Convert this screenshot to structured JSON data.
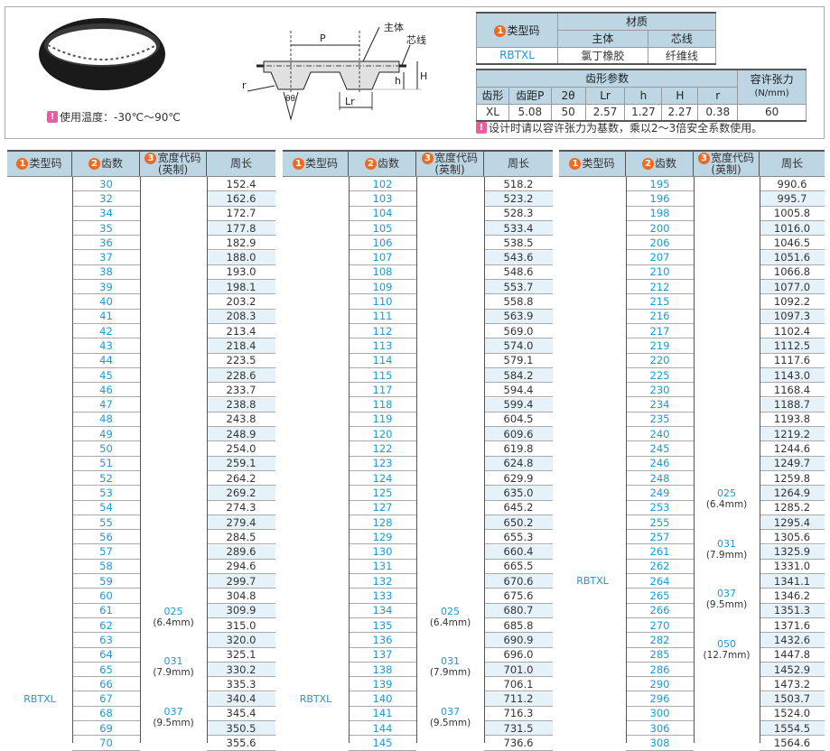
{
  "top": {
    "temperature_note": "使用温度：-30℃～90℃",
    "diagram_labels": {
      "P": "P",
      "body": "主体",
      "core": "芯线",
      "H": "H",
      "h": "h",
      "r": "r",
      "theta": "θθ",
      "Lr": "Lr"
    },
    "material_table": {
      "type_code_num": "1",
      "type_code": "类型码",
      "material": "材质",
      "body": "主体",
      "core": "芯线",
      "row": {
        "type": "RBTXL",
        "body": "氯丁橡胶",
        "core": "纤维线"
      }
    },
    "tooth_table": {
      "group": "齿形参数",
      "tension": "容许张力",
      "tension_unit": "(N/mm)",
      "headers": [
        "齿形",
        "齿距P",
        "2θ",
        "Lr",
        "h",
        "H",
        "r"
      ],
      "values": [
        "XL",
        "5.08",
        "50",
        "2.57",
        "1.27",
        "2.27",
        "0.38"
      ],
      "tension_value": "60"
    },
    "design_note": "设计时请以容许张力为基数，乘以2～3倍安全系数使用。"
  },
  "colors": {
    "header_bg": "#bdd6e4",
    "accent_blue": "#1a9ad6",
    "badge_orange": "#ee6a1f",
    "warn_pink": "#e85fa0",
    "row_shade": "#e6f2f9"
  },
  "columns": {
    "type_num": "1",
    "type": "类型码",
    "teeth_num": "2",
    "teeth": "齿数",
    "width_num": "3",
    "width": "宽度代码",
    "width_sub": "(英制)",
    "length": "周长"
  },
  "tables": [
    {
      "type": "RBTXL",
      "widths": [
        {
          "code": "025",
          "mm": "(6.4mm)"
        },
        {
          "code": "031",
          "mm": "(7.9mm)"
        },
        {
          "code": "037",
          "mm": "(9.5mm)"
        }
      ],
      "rows": [
        [
          "30",
          "152.4"
        ],
        [
          "32",
          "162.6"
        ],
        [
          "34",
          "172.7"
        ],
        [
          "35",
          "177.8"
        ],
        [
          "36",
          "182.9"
        ],
        [
          "37",
          "188.0"
        ],
        [
          "38",
          "193.0"
        ],
        [
          "39",
          "198.1"
        ],
        [
          "40",
          "203.2"
        ],
        [
          "41",
          "208.3"
        ],
        [
          "42",
          "213.4"
        ],
        [
          "43",
          "218.4"
        ],
        [
          "44",
          "223.5"
        ],
        [
          "45",
          "228.6"
        ],
        [
          "46",
          "233.7"
        ],
        [
          "47",
          "238.8"
        ],
        [
          "48",
          "243.8"
        ],
        [
          "49",
          "248.9"
        ],
        [
          "50",
          "254.0"
        ],
        [
          "51",
          "259.1"
        ],
        [
          "52",
          "264.2"
        ],
        [
          "53",
          "269.2"
        ],
        [
          "54",
          "274.3"
        ],
        [
          "55",
          "279.4"
        ],
        [
          "56",
          "284.5"
        ],
        [
          "57",
          "289.6"
        ],
        [
          "58",
          "294.6"
        ],
        [
          "59",
          "299.7"
        ],
        [
          "60",
          "304.8"
        ],
        [
          "61",
          "309.9"
        ],
        [
          "62",
          "315.0"
        ],
        [
          "63",
          "320.0"
        ],
        [
          "64",
          "325.1"
        ],
        [
          "65",
          "330.2"
        ],
        [
          "66",
          "335.3"
        ],
        [
          "67",
          "340.4"
        ],
        [
          "68",
          "345.4"
        ],
        [
          "69",
          "350.5"
        ],
        [
          "70",
          "355.6"
        ]
      ]
    },
    {
      "type": "RBTXL",
      "widths": [
        {
          "code": "025",
          "mm": "(6.4mm)"
        },
        {
          "code": "031",
          "mm": "(7.9mm)"
        },
        {
          "code": "037",
          "mm": "(9.5mm)"
        }
      ],
      "rows": [
        [
          "102",
          "518.2"
        ],
        [
          "103",
          "523.2"
        ],
        [
          "104",
          "528.3"
        ],
        [
          "105",
          "533.4"
        ],
        [
          "106",
          "538.5"
        ],
        [
          "107",
          "543.6"
        ],
        [
          "108",
          "548.6"
        ],
        [
          "109",
          "553.7"
        ],
        [
          "110",
          "558.8"
        ],
        [
          "111",
          "563.9"
        ],
        [
          "112",
          "569.0"
        ],
        [
          "113",
          "574.0"
        ],
        [
          "114",
          "579.1"
        ],
        [
          "115",
          "584.2"
        ],
        [
          "117",
          "594.4"
        ],
        [
          "118",
          "599.4"
        ],
        [
          "119",
          "604.5"
        ],
        [
          "120",
          "609.6"
        ],
        [
          "122",
          "619.8"
        ],
        [
          "123",
          "624.8"
        ],
        [
          "124",
          "629.9"
        ],
        [
          "125",
          "635.0"
        ],
        [
          "127",
          "645.2"
        ],
        [
          "128",
          "650.2"
        ],
        [
          "129",
          "655.3"
        ],
        [
          "130",
          "660.4"
        ],
        [
          "131",
          "665.5"
        ],
        [
          "132",
          "670.6"
        ],
        [
          "133",
          "675.6"
        ],
        [
          "134",
          "680.7"
        ],
        [
          "135",
          "685.8"
        ],
        [
          "136",
          "690.9"
        ],
        [
          "137",
          "696.0"
        ],
        [
          "138",
          "701.0"
        ],
        [
          "139",
          "706.1"
        ],
        [
          "140",
          "711.2"
        ],
        [
          "141",
          "716.3"
        ],
        [
          "144",
          "731.5"
        ],
        [
          "145",
          "736.6"
        ]
      ]
    },
    {
      "type": "RBTXL",
      "widths": [
        {
          "code": "025",
          "mm": "(6.4mm)"
        },
        {
          "code": "031",
          "mm": "(7.9mm)"
        },
        {
          "code": "037",
          "mm": "(9.5mm)"
        },
        {
          "code": "050",
          "mm": "(12.7mm)"
        }
      ],
      "rows": [
        [
          "195",
          "990.6"
        ],
        [
          "196",
          "995.7"
        ],
        [
          "198",
          "1005.8"
        ],
        [
          "200",
          "1016.0"
        ],
        [
          "206",
          "1046.5"
        ],
        [
          "207",
          "1051.6"
        ],
        [
          "210",
          "1066.8"
        ],
        [
          "212",
          "1077.0"
        ],
        [
          "215",
          "1092.2"
        ],
        [
          "216",
          "1097.3"
        ],
        [
          "217",
          "1102.4"
        ],
        [
          "219",
          "1112.5"
        ],
        [
          "220",
          "1117.6"
        ],
        [
          "225",
          "1143.0"
        ],
        [
          "230",
          "1168.4"
        ],
        [
          "234",
          "1188.7"
        ],
        [
          "235",
          "1193.8"
        ],
        [
          "240",
          "1219.2"
        ],
        [
          "245",
          "1244.6"
        ],
        [
          "246",
          "1249.7"
        ],
        [
          "248",
          "1259.8"
        ],
        [
          "249",
          "1264.9"
        ],
        [
          "253",
          "1285.2"
        ],
        [
          "255",
          "1295.4"
        ],
        [
          "257",
          "1305.6"
        ],
        [
          "261",
          "1325.9"
        ],
        [
          "262",
          "1331.0"
        ],
        [
          "264",
          "1341.1"
        ],
        [
          "265",
          "1346.2"
        ],
        [
          "266",
          "1351.3"
        ],
        [
          "270",
          "1371.6"
        ],
        [
          "282",
          "1432.6"
        ],
        [
          "285",
          "1447.8"
        ],
        [
          "286",
          "1452.9"
        ],
        [
          "290",
          "1473.2"
        ],
        [
          "296",
          "1503.7"
        ],
        [
          "300",
          "1524.0"
        ],
        [
          "306",
          "1554.5"
        ],
        [
          "308",
          "1564.6"
        ]
      ]
    }
  ]
}
